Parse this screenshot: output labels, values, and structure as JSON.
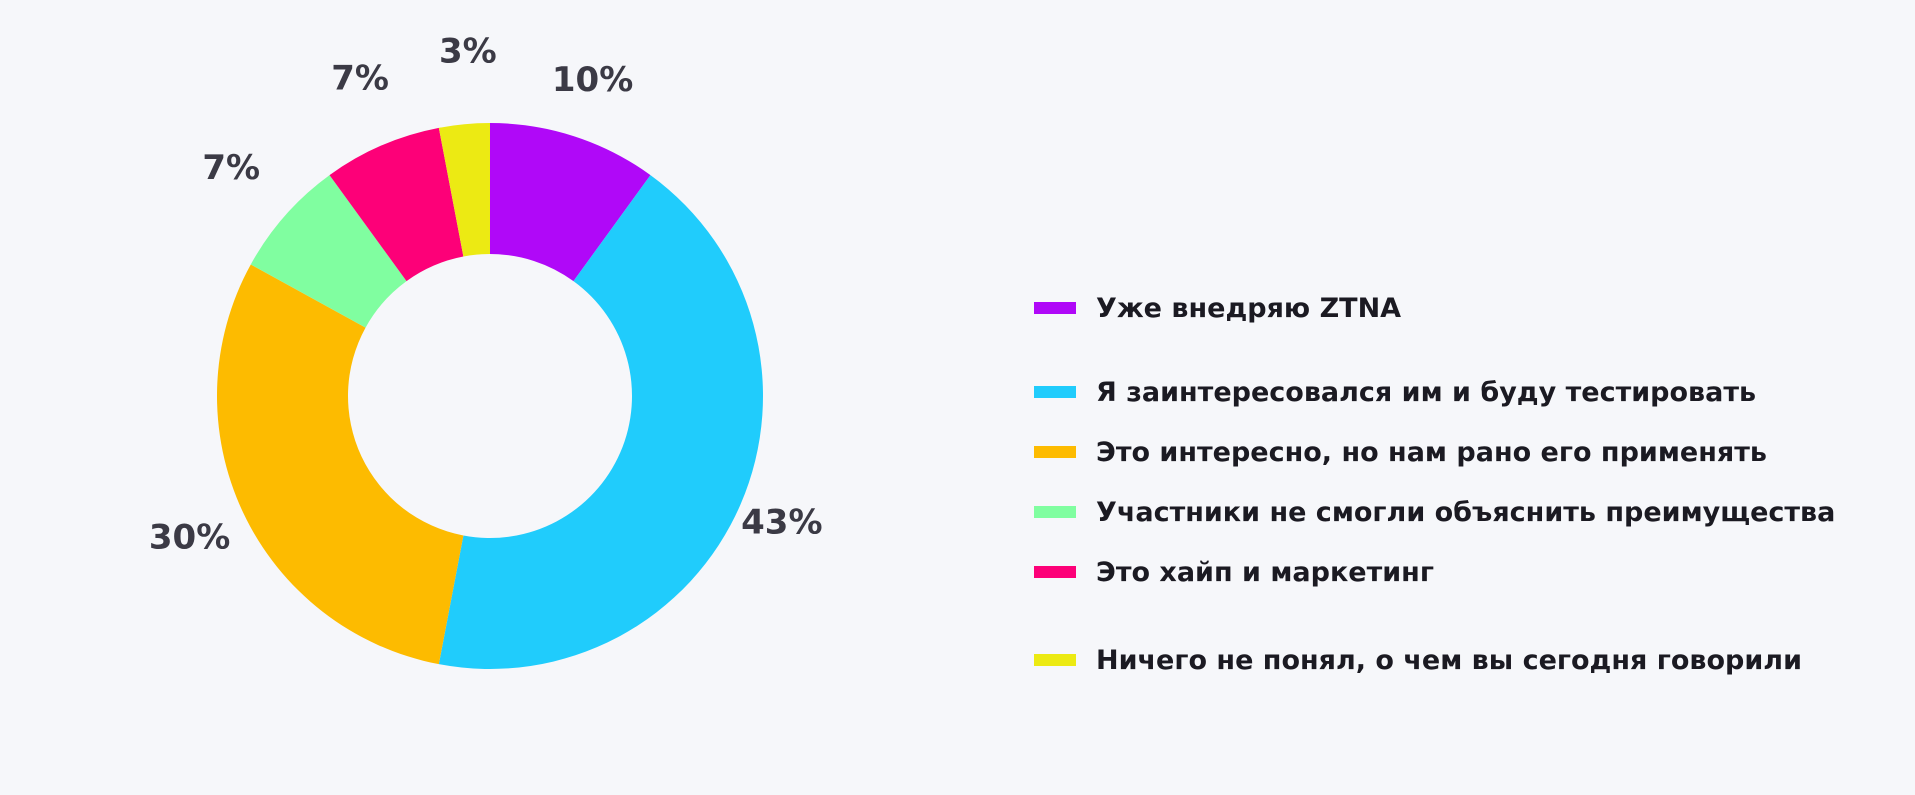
{
  "colors": {
    "background": "#f6f7fa",
    "label": "#3b3a45",
    "legend_text": "#1b1a22"
  },
  "chart_data": {
    "type": "pie",
    "donut": true,
    "start": "top",
    "direction": "clockwise",
    "unit": "%",
    "title": "",
    "legend_position": "right",
    "slices": [
      {
        "label": "Уже внедряю ZTNA",
        "value": 10,
        "display": "10%",
        "color": "#b008f8"
      },
      {
        "label": "Я заинтересовался им и буду тестировать",
        "value": 43,
        "display": "43%",
        "color": "#20ccfc"
      },
      {
        "label": "Это интересно, но нам рано его применять",
        "value": 30,
        "display": "30%",
        "color": "#fdbb00"
      },
      {
        "label": "Участники не смогли объяснить преимущества",
        "value": 7,
        "display": "7%",
        "color": "#80fea0"
      },
      {
        "label": "Это хайп и маркетинг",
        "value": 7,
        "display": "7%",
        "color": "#fd0078"
      },
      {
        "label": "Ничего не понял, о чем вы сегодня говорили",
        "value": 3,
        "display": "3%",
        "color": "#ecea13"
      }
    ]
  }
}
